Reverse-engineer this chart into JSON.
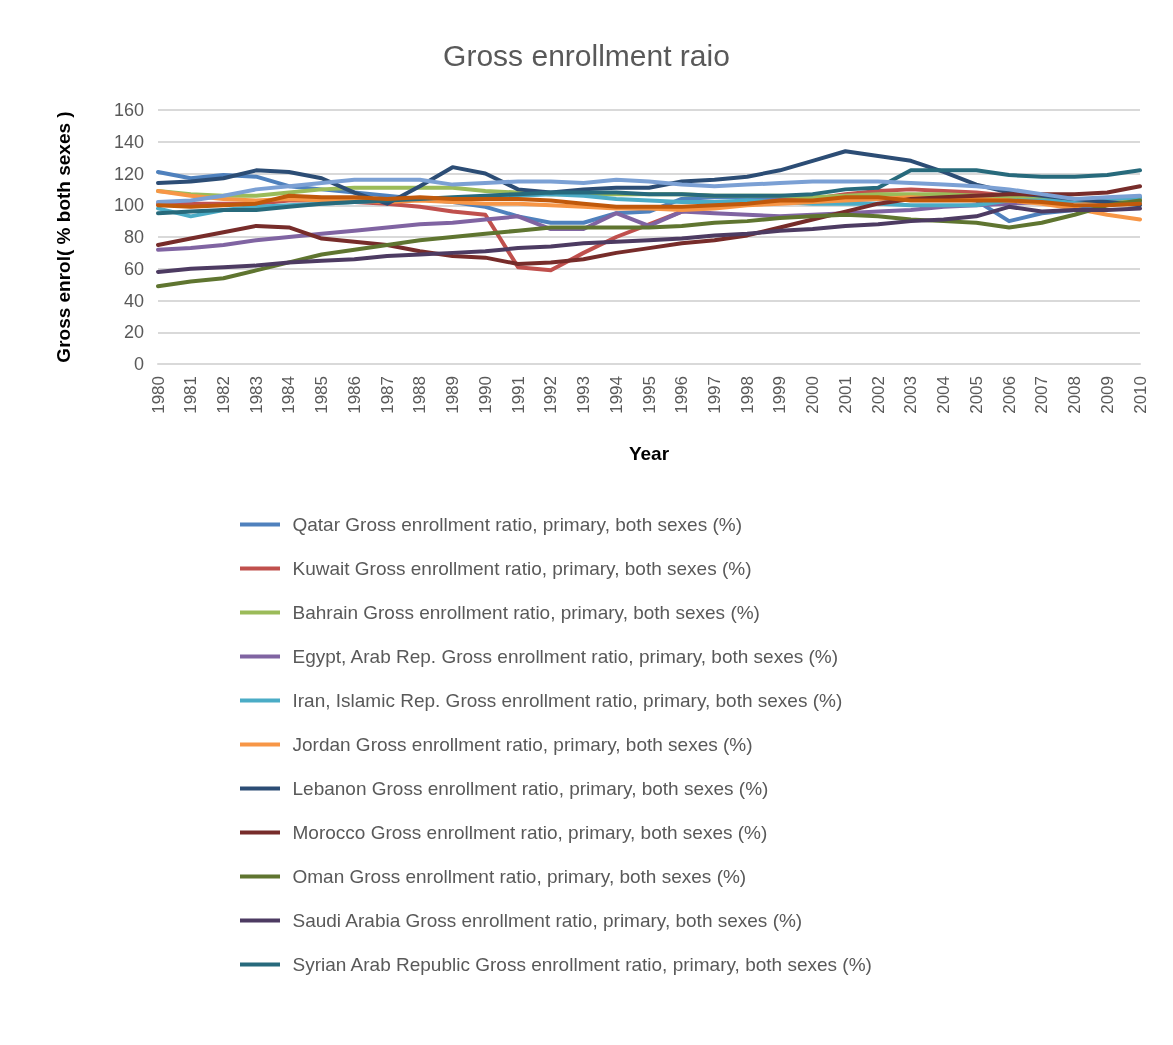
{
  "chart_data": {
    "type": "line",
    "title": "Gross enrollment raio",
    "xlabel": "Year",
    "ylabel": "Gross enrol( % both sexes )",
    "categories": [
      "1980",
      "1981",
      "1982",
      "1983",
      "1984",
      "1985",
      "1986",
      "1987",
      "1988",
      "1989",
      "1990",
      "1991",
      "1992",
      "1993",
      "1994",
      "1995",
      "1996",
      "1997",
      "1998",
      "1999",
      "2000",
      "2001",
      "2002",
      "2003",
      "2004",
      "2005",
      "2006",
      "2007",
      "2008",
      "2009",
      "2010"
    ],
    "ylim": [
      0,
      160
    ],
    "yticks": [
      0,
      20,
      40,
      60,
      80,
      100,
      120,
      140,
      160
    ],
    "grid": "y",
    "legend": "bottom",
    "marker": "none",
    "line_style": "solid",
    "series": [
      {
        "name": "Qatar Gross enrollment ratio, primary, both sexes (%)",
        "color": "#4f81bd",
        "values": [
          121,
          117,
          119,
          118,
          112,
          110,
          108,
          106,
          104,
          102,
          99,
          93,
          89,
          89,
          95,
          96,
          104,
          105,
          105,
          104,
          103,
          103,
          104,
          104,
          105,
          103,
          90,
          95,
          97,
          101,
          102
        ]
      },
      {
        "name": "Kuwait Gross enrollment ratio, primary, both sexes (%)",
        "color": "#c0504d",
        "values": [
          101,
          101,
          101,
          101,
          103,
          103,
          102,
          101,
          99,
          96,
          94,
          61,
          59,
          70,
          80,
          88,
          96,
          100,
          102,
          103,
          104,
          107,
          109,
          110,
          109,
          108,
          106,
          105,
          103,
          102,
          104
        ]
      },
      {
        "name": "Bahrain Gross enrollment ratio, primary, both sexes (%)",
        "color": "#9bbb59",
        "values": [
          109,
          107,
          106,
          106,
          108,
          110,
          111,
          111,
          111,
          111,
          109,
          108,
          107,
          107,
          107,
          107,
          107,
          106,
          106,
          106,
          105,
          106,
          107,
          107,
          107,
          106,
          105,
          104,
          103,
          103,
          104
        ]
      },
      {
        "name": "Egypt, Arab Rep. Gross enrollment ratio, primary, both sexes (%)",
        "color": "#8064a2",
        "values": [
          72,
          73,
          75,
          78,
          80,
          82,
          84,
          86,
          88,
          89,
          91,
          93,
          85,
          85,
          95,
          87,
          96,
          95,
          94,
          93,
          94,
          95,
          96,
          97,
          99,
          100,
          101,
          102,
          103,
          104,
          105
        ]
      },
      {
        "name": "Iran, Islamic Rep. Gross enrollment ratio, primary, both sexes (%)",
        "color": "#4bacc6",
        "values": [
          98,
          93,
          97,
          99,
          100,
          101,
          102,
          103,
          104,
          103,
          105,
          106,
          107,
          106,
          104,
          103,
          102,
          102,
          103,
          102,
          101,
          101,
          101,
          100,
          100,
          100,
          103,
          103,
          103,
          104,
          105
        ]
      },
      {
        "name": "Jordan Gross enrollment ratio, primary, both sexes (%)",
        "color": "#f79646",
        "values": [
          109,
          106,
          104,
          103,
          104,
          103,
          103,
          102,
          103,
          102,
          101,
          101,
          100,
          99,
          98,
          98,
          97,
          98,
          100,
          101,
          102,
          103,
          104,
          105,
          104,
          104,
          103,
          101,
          98,
          94,
          91
        ]
      },
      {
        "name": "Lebanon Gross enrollment ratio, primary, both sexes (%)",
        "color": "#2c4d75",
        "values": [
          114,
          115,
          117,
          122,
          121,
          117,
          108,
          101,
          112,
          124,
          120,
          110,
          108,
          110,
          111,
          111,
          115,
          116,
          118,
          122,
          128,
          134,
          131,
          128,
          121,
          113,
          108,
          106,
          104,
          102,
          100
        ]
      },
      {
        "name": "Morocco Gross enrollment ratio, primary, both sexes (%)",
        "color": "#772c2a",
        "values": [
          75,
          79,
          83,
          87,
          86,
          79,
          77,
          75,
          71,
          68,
          67,
          63,
          64,
          66,
          70,
          73,
          76,
          78,
          81,
          86,
          91,
          96,
          101,
          104,
          105,
          106,
          107,
          107,
          107,
          108,
          112
        ]
      },
      {
        "name": "Oman Gross enrollment ratio, primary, both sexes (%)",
        "color": "#5f7530",
        "values": [
          49,
          52,
          54,
          59,
          64,
          69,
          72,
          75,
          78,
          80,
          82,
          84,
          86,
          86,
          86,
          86,
          87,
          89,
          90,
          92,
          93,
          94,
          93,
          91,
          90,
          89,
          86,
          89,
          94,
          100,
          103
        ]
      },
      {
        "name": "Saudi Arabia Gross enrollment ratio, primary, both sexes (%)",
        "color": "#4d3b62",
        "values": [
          58,
          60,
          61,
          62,
          64,
          65,
          66,
          68,
          69,
          70,
          71,
          73,
          74,
          76,
          77,
          78,
          79,
          81,
          82,
          84,
          85,
          87,
          88,
          90,
          91,
          93,
          99,
          96,
          97,
          97,
          98
        ]
      },
      {
        "name": "Syrian Arab Republic Gross enrollment ratio, primary, both sexes (%)",
        "color": "#276a7c",
        "values": [
          95,
          96,
          97,
          97,
          99,
          101,
          102,
          103,
          104,
          105,
          106,
          107,
          108,
          108,
          108,
          107,
          107,
          106,
          106,
          106,
          107,
          110,
          111,
          122,
          122,
          122,
          119,
          118,
          118,
          119,
          122
        ]
      },
      {
        "color": "#7ba0d4",
        "values": [
          102,
          103,
          106,
          110,
          112,
          114,
          116,
          116,
          116,
          113,
          114,
          115,
          115,
          114,
          116,
          115,
          113,
          112,
          113,
          114,
          115,
          115,
          115,
          114,
          113,
          112,
          110,
          107,
          104,
          105,
          106
        ]
      },
      {
        "color": "#c0590b",
        "values": [
          100,
          99,
          100,
          101,
          106,
          105,
          105,
          104,
          105,
          104,
          104,
          104,
          103,
          101,
          99,
          99,
          99,
          100,
          101,
          103,
          103,
          105,
          105,
          103,
          103,
          103,
          103,
          102,
          100,
          100,
          101
        ]
      }
    ]
  }
}
